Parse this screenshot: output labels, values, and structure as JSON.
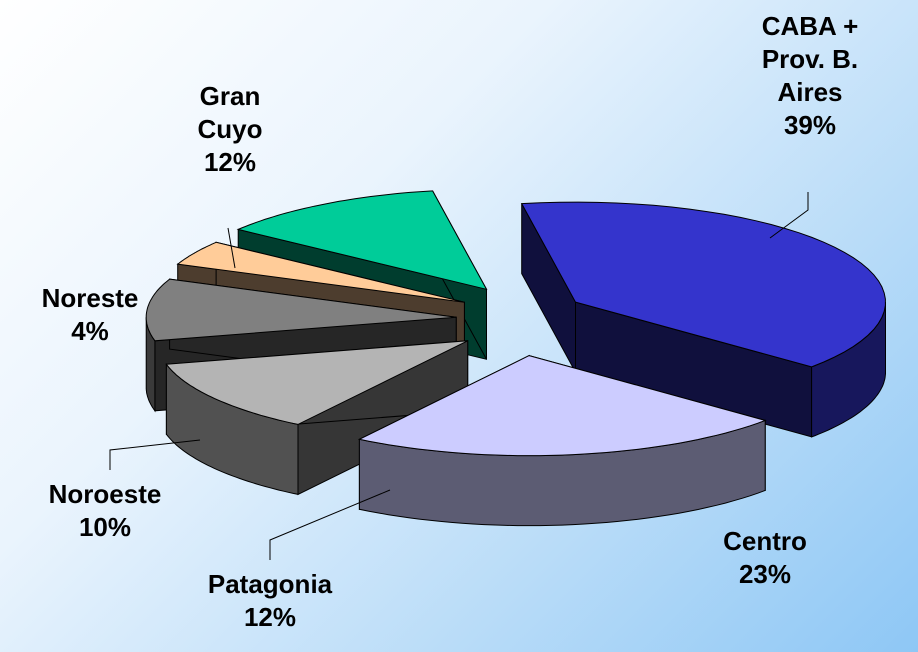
{
  "chart_data": {
    "type": "pie3d",
    "categories": [
      "CABA + Prov. B. Aires",
      "Centro",
      "Patagonia",
      "Noroeste",
      "Noreste",
      "Gran Cuyo"
    ],
    "values": [
      39,
      23,
      12,
      10,
      4,
      12
    ],
    "value_labels": [
      "39%",
      "23%",
      "12%",
      "10%",
      "4%",
      "12%"
    ],
    "colors": [
      "#3434cc",
      "#ccccff",
      "#b4b4b4",
      "#808080",
      "#ffcc99",
      "#00cc99"
    ]
  }
}
